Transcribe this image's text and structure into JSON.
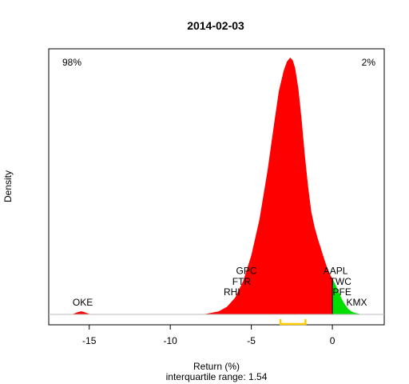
{
  "chart_data": {
    "type": "area",
    "title": "2014-02-03",
    "xlabel": "Return (%)",
    "ylabel": "Density",
    "subtitle": "interquartile range: 1.54",
    "xlim": [
      -17.5,
      3.2
    ],
    "ylim": [
      0,
      1
    ],
    "x_ticks": [
      -15,
      -10,
      -5,
      0
    ],
    "split_x": 0,
    "negative_share": "98%",
    "positive_share": "2%",
    "colors": {
      "negative": "#ff0000",
      "positive": "#00dd00",
      "iqr": "#ffcc00",
      "negative_label": "#cc0000",
      "positive_label": "#008800",
      "baseline": "#bbbbbb"
    },
    "density": {
      "x": [
        -16.1,
        -15.9,
        -15.7,
        -15.5,
        -15.3,
        -15.1,
        -14.9,
        -14.5,
        -10,
        -7.8,
        -7.0,
        -6.5,
        -6.0,
        -5.5,
        -5.0,
        -4.5,
        -4.0,
        -3.6,
        -3.3,
        -3.0,
        -2.8,
        -2.6,
        -2.45,
        -2.3,
        -2.1,
        -1.9,
        -1.7,
        -1.5,
        -1.3,
        -1.1,
        -0.9,
        -0.7,
        -0.5,
        -0.3,
        -0.1,
        0.0,
        0.2,
        0.4,
        0.6,
        0.8,
        1.0,
        1.2,
        1.4,
        1.6,
        1.8
      ],
      "y": [
        0,
        0.004,
        0.009,
        0.012,
        0.009,
        0.004,
        0,
        0,
        0,
        0.002,
        0.012,
        0.03,
        0.065,
        0.13,
        0.23,
        0.37,
        0.56,
        0.74,
        0.87,
        0.95,
        0.985,
        1.0,
        0.99,
        0.96,
        0.88,
        0.76,
        0.62,
        0.5,
        0.4,
        0.34,
        0.295,
        0.255,
        0.215,
        0.178,
        0.15,
        0.14,
        0.115,
        0.085,
        0.058,
        0.036,
        0.02,
        0.011,
        0.006,
        0.003,
        0
      ]
    },
    "iqr": [
      -3.2,
      -1.66
    ],
    "annotations": [
      {
        "text": "OKE",
        "x": -15.4,
        "y": 0.035
      },
      {
        "text": "RHI",
        "x": -6.2,
        "y": 0.075
      },
      {
        "text": "FTR",
        "x": -5.6,
        "y": 0.115
      },
      {
        "text": "GPC",
        "x": -5.3,
        "y": 0.158
      },
      {
        "text": "AAPL",
        "x": 0.2,
        "y": 0.158
      },
      {
        "text": "TWC",
        "x": 0.5,
        "y": 0.115
      },
      {
        "text": "PFE",
        "x": 0.6,
        "y": 0.075
      },
      {
        "text": "KMX",
        "x": 1.5,
        "y": 0.035
      }
    ]
  }
}
